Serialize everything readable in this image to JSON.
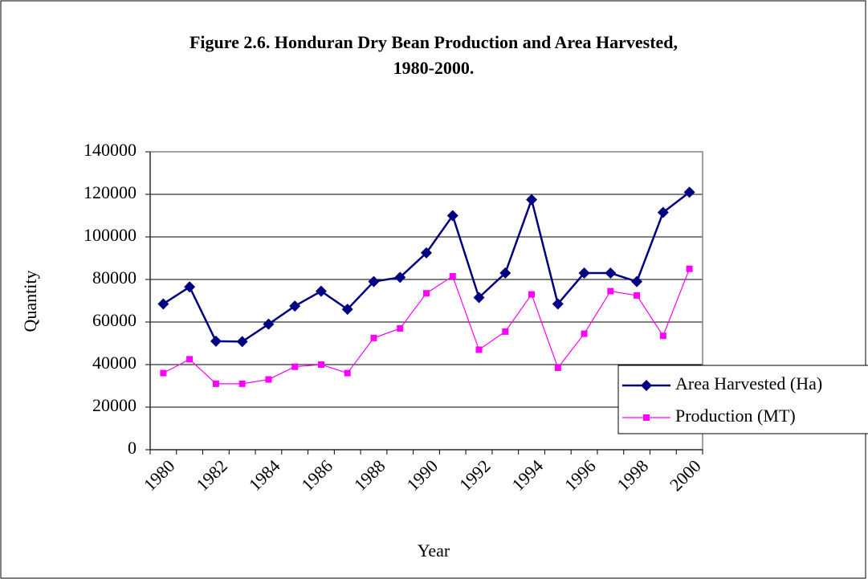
{
  "chart_data": {
    "type": "line",
    "title_lines": [
      "Figure 2.6. Honduran Dry Bean Production and Area Harvested,",
      "1980-2000."
    ],
    "x_label": "Year",
    "y_label": "Quantity",
    "categories": [
      "1980",
      null,
      "1982",
      null,
      "1984",
      null,
      "1986",
      null,
      "1988",
      null,
      "1990",
      null,
      "1992",
      null,
      "1994",
      null,
      "1996",
      null,
      "1998",
      null,
      "2000"
    ],
    "series": [
      {
        "name": "Area Harvested (Ha)",
        "color": "#000080",
        "marker": "diamond",
        "values": [
          68500,
          76500,
          51000,
          50800,
          59000,
          67500,
          74500,
          66000,
          79000,
          81000,
          92500,
          110000,
          71500,
          83000,
          117500,
          68500,
          83000,
          83000,
          79000,
          111500,
          121000
        ]
      },
      {
        "name": "Production (MT)",
        "color": "#ff00ff",
        "marker": "square",
        "values": [
          36000,
          42500,
          31000,
          31000,
          33000,
          39000,
          40000,
          36000,
          52500,
          57000,
          73500,
          81500,
          47000,
          55500,
          73000,
          38500,
          54500,
          74500,
          72500,
          53500,
          85000
        ]
      }
    ],
    "ylim": [
      0,
      140000
    ],
    "yticks": [
      0,
      20000,
      40000,
      60000,
      80000,
      100000,
      120000,
      140000
    ],
    "grid": true,
    "legend": "right"
  }
}
